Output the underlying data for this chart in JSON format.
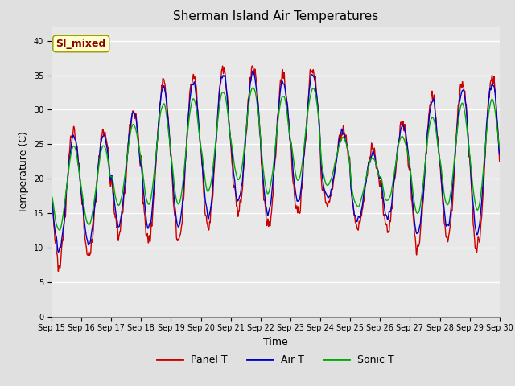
{
  "title": "Sherman Island Air Temperatures",
  "xlabel": "Time",
  "ylabel": "Temperature (C)",
  "annotation": "SI_mixed",
  "ylim": [
    0,
    42
  ],
  "yticks": [
    0,
    5,
    10,
    15,
    20,
    25,
    30,
    35,
    40
  ],
  "date_labels": [
    "Sep 15",
    "Sep 16",
    "Sep 17",
    "Sep 18",
    "Sep 19",
    "Sep 20",
    "Sep 21",
    "Sep 22",
    "Sep 23",
    "Sep 24",
    "Sep 25",
    "Sep 26",
    "Sep 27",
    "Sep 28",
    "Sep 29",
    "Sep 30"
  ],
  "panel_color": "#cc0000",
  "air_color": "#0000cc",
  "sonic_color": "#00aa00",
  "fig_bg": "#e0e0e0",
  "plot_bg": "#e8e8e8",
  "legend_labels": [
    "Panel T",
    "Air T",
    "Sonic T"
  ],
  "title_fontsize": 11,
  "label_fontsize": 9,
  "tick_fontsize": 7,
  "annotation_bg": "#ffffcc",
  "annotation_fg": "#880000",
  "day_mins_panel": [
    8,
    9,
    12,
    11,
    11,
    13,
    15,
    13,
    15,
    16,
    13,
    13,
    10,
    11,
    10
  ],
  "day_maxs_panel": [
    27,
    27,
    30,
    34,
    35,
    36,
    36,
    35,
    36,
    27,
    24,
    28,
    32,
    34,
    35
  ]
}
